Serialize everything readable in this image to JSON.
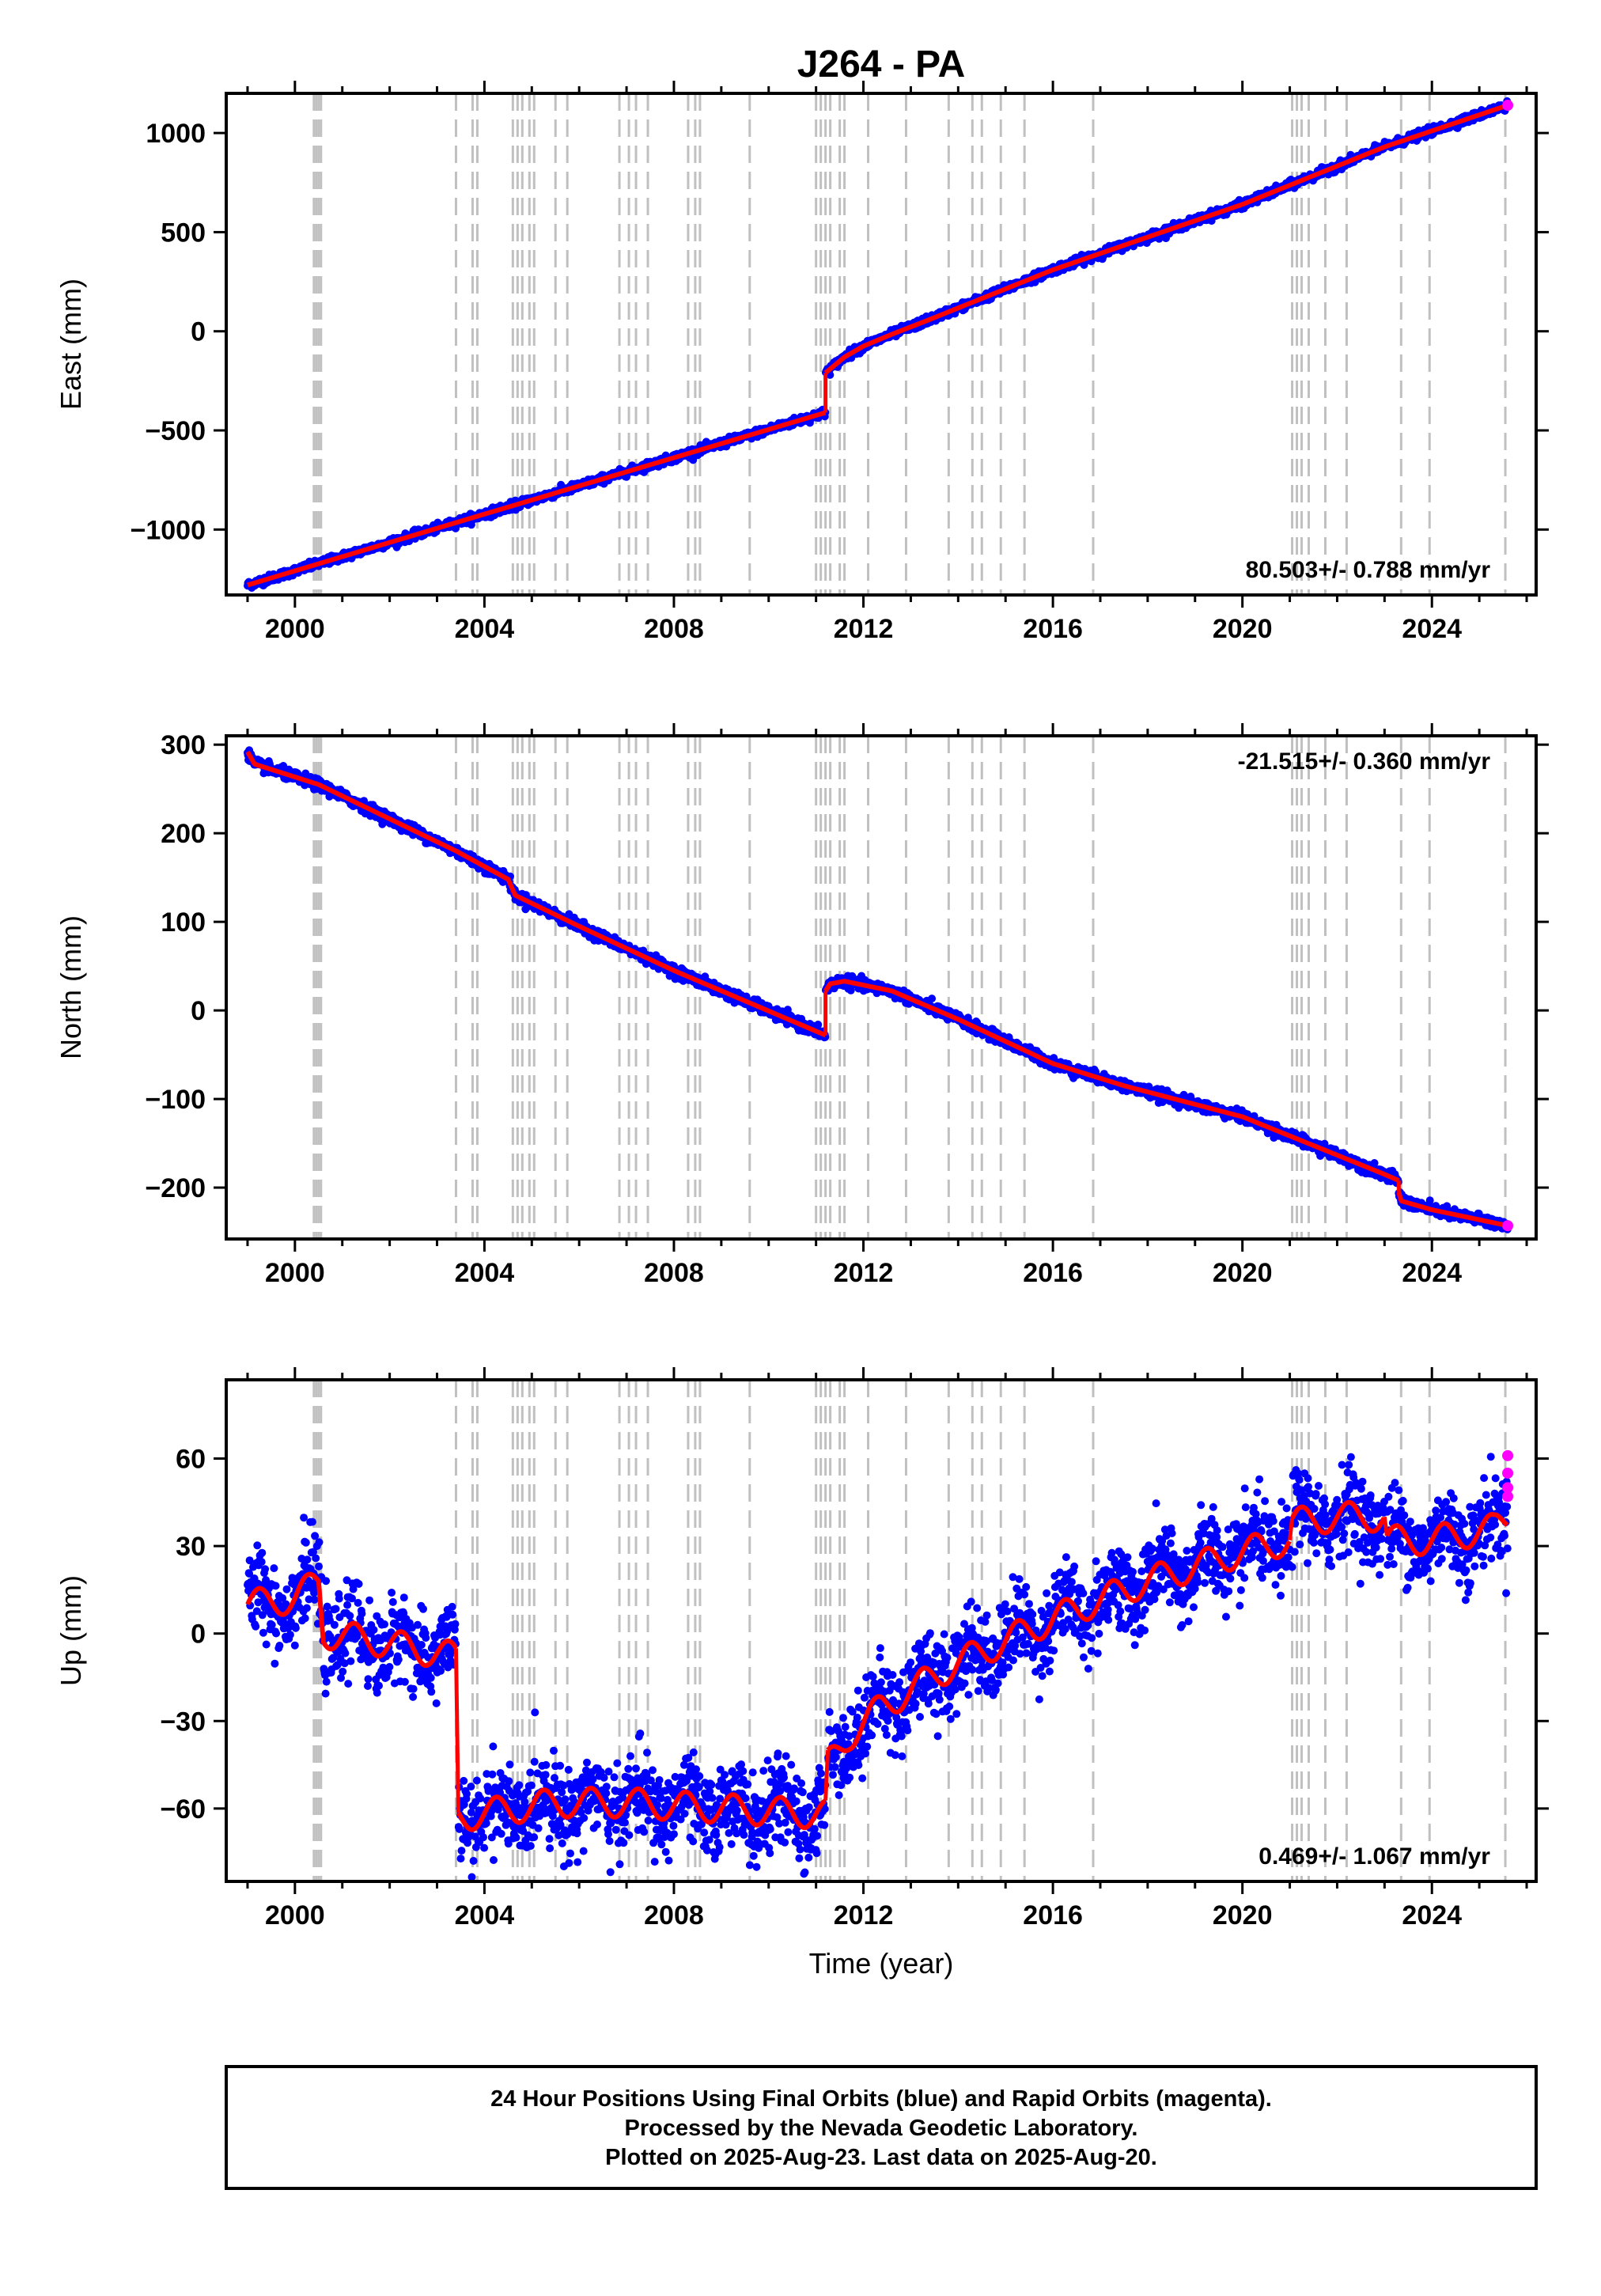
{
  "title": "J264 - PA",
  "colors": {
    "final_points": "#0000ff",
    "rapid_points": "#ff00ff",
    "model_line": "#ff0000",
    "event_lines": "#c0c0c0",
    "frame": "#000000"
  },
  "caption": {
    "line1": "24 Hour Positions Using Final Orbits (blue) and Rapid Orbits (magenta).",
    "line2": "Processed by the Nevada Geodetic Laboratory.",
    "line3": "Plotted on 2025-Aug-23. Last data on 2025-Aug-20."
  },
  "chart_data": [
    {
      "type": "scatter",
      "name": "east",
      "ylabel": "East (mm)",
      "xlabel": "",
      "xlim": [
        1998.55,
        2026.2
      ],
      "ylim": [
        -1330,
        1200
      ],
      "xticks": [
        "2000",
        "2004",
        "2008",
        "2012",
        "2016",
        "2020",
        "2024"
      ],
      "yticks": [
        "−1000",
        "−500",
        "0",
        "500",
        "1000"
      ],
      "rate_text": "80.503+/- 0.788 mm/yr",
      "rate_position": "bottom-right",
      "event_lines_years": [
        2000.4,
        2000.45,
        2000.5,
        2000.55,
        2003.4,
        2003.75,
        2003.85,
        2004.6,
        2004.7,
        2004.8,
        2004.95,
        2005.05,
        2005.5,
        2005.75,
        2006.85,
        2007.05,
        2007.2,
        2007.45,
        2008.3,
        2008.45,
        2008.55,
        2009.6,
        2011.0,
        2011.1,
        2011.2,
        2011.3,
        2011.5,
        2011.6,
        2012.1,
        2012.9,
        2013.8,
        2014.3,
        2014.5,
        2014.9,
        2015.4,
        2016.85,
        2021.05,
        2021.15,
        2021.25,
        2021.4,
        2021.75,
        2022.2,
        2023.35,
        2023.95,
        2025.55
      ],
      "fit_segments": [
        {
          "x": [
            1999.0,
            2003.4,
            2011.2
          ],
          "y": [
            -1280,
            -965,
            -410
          ]
        },
        {
          "x": [
            2011.2,
            2011.6,
            2012.0,
            2012.6,
            2013.3,
            2016.0,
            2020.0,
            2023.0,
            2025.6
          ],
          "y": [
            -210,
            -130,
            -75,
            -15,
            50,
            310,
            640,
            930,
            1140
          ]
        }
      ],
      "noise_sd": 10,
      "rapid_points": [
        {
          "x": 2025.6,
          "y": 1140
        }
      ]
    },
    {
      "type": "scatter",
      "name": "north",
      "ylabel": "North (mm)",
      "xlabel": "",
      "xlim": [
        1998.55,
        2026.2
      ],
      "ylim": [
        -258,
        310
      ],
      "xticks": [
        "2000",
        "2004",
        "2008",
        "2012",
        "2016",
        "2020",
        "2024"
      ],
      "yticks": [
        "−200",
        "−100",
        "0",
        "100",
        "200",
        "300"
      ],
      "rate_text": "-21.515+/- 0.360 mm/yr",
      "rate_position": "top-right",
      "event_lines_years": [
        2000.4,
        2000.45,
        2000.5,
        2000.55,
        2003.4,
        2003.75,
        2003.85,
        2004.6,
        2004.7,
        2004.8,
        2004.95,
        2005.05,
        2005.5,
        2005.75,
        2006.85,
        2007.05,
        2007.2,
        2007.45,
        2008.3,
        2008.45,
        2008.55,
        2009.6,
        2011.0,
        2011.1,
        2011.2,
        2011.3,
        2011.5,
        2011.6,
        2012.1,
        2012.9,
        2013.8,
        2014.3,
        2014.5,
        2014.9,
        2015.4,
        2016.85,
        2021.05,
        2021.15,
        2021.25,
        2021.4,
        2021.75,
        2022.2,
        2023.35,
        2023.95,
        2025.55
      ],
      "fit_segments": [
        {
          "x": [
            1999.0,
            1999.15,
            2000.5,
            2003.4,
            2004.5,
            2004.65,
            2006.0,
            2008.0,
            2011.2
          ],
          "y": [
            292,
            278,
            255,
            180,
            148,
            130,
            95,
            45,
            -28
          ]
        },
        {
          "x": [
            2011.2,
            2011.3,
            2011.6,
            2012.6,
            2014.0,
            2016.0,
            2017.5,
            2020.0,
            2023.0,
            2023.3
          ],
          "y": [
            22,
            30,
            33,
            22,
            -10,
            -60,
            -85,
            -120,
            -185,
            -192
          ]
        },
        {
          "x": [
            2023.3,
            2023.35,
            2024.0,
            2025.6
          ],
          "y": [
            -205,
            -215,
            -225,
            -243
          ]
        }
      ],
      "noise_sd": 3,
      "rapid_points": [
        {
          "x": 2025.6,
          "y": -243
        }
      ]
    },
    {
      "type": "scatter",
      "name": "up",
      "ylabel": "Up (mm)",
      "xlabel": "Time (year)",
      "xlim": [
        1998.55,
        2026.2
      ],
      "ylim": [
        -85,
        87
      ],
      "xticks": [
        "2000",
        "2004",
        "2008",
        "2012",
        "2016",
        "2020",
        "2024"
      ],
      "yticks": [
        "−60",
        "−30",
        "0",
        "30",
        "60"
      ],
      "rate_text": "0.469+/- 1.067 mm/yr",
      "rate_position": "bottom-right",
      "event_lines_years": [
        2000.4,
        2000.45,
        2000.5,
        2000.55,
        2003.4,
        2003.75,
        2003.85,
        2004.6,
        2004.7,
        2004.8,
        2004.95,
        2005.05,
        2005.5,
        2005.75,
        2006.85,
        2007.05,
        2007.2,
        2007.45,
        2008.3,
        2008.45,
        2008.55,
        2009.6,
        2011.0,
        2011.1,
        2011.2,
        2011.3,
        2011.5,
        2011.6,
        2012.1,
        2012.9,
        2013.8,
        2014.3,
        2014.5,
        2014.9,
        2015.4,
        2016.85,
        2021.05,
        2021.15,
        2021.25,
        2021.4,
        2021.75,
        2022.2,
        2023.35,
        2023.95,
        2025.55
      ],
      "fit_segments": [
        {
          "x": [
            1999.0,
            2000.0,
            2000.5,
            2000.6,
            2001.5,
            2003.4
          ],
          "y": [
            10,
            12,
            18,
            0,
            -2,
            -8
          ]
        },
        {
          "x": [
            2003.45,
            2005.5,
            2007.0,
            2009.0,
            2011.2
          ],
          "y": [
            -63,
            -58,
            -58,
            -60,
            -62
          ]
        },
        {
          "x": [
            2011.25,
            2011.7,
            2012.4,
            2014.0,
            2016.0,
            2018.0,
            2020.0,
            2021.0
          ],
          "y": [
            -45,
            -35,
            -25,
            -10,
            5,
            18,
            28,
            32
          ]
        },
        {
          "x": [
            2021.05,
            2022.0,
            2023.0
          ],
          "y": [
            38,
            40,
            40
          ]
        },
        {
          "x": [
            2023.05,
            2024.0,
            2025.3,
            2025.6
          ],
          "y": [
            32,
            32,
            36,
            40
          ]
        }
      ],
      "seasonal_amp": 5,
      "noise_sd": 7,
      "rapid_points": [
        {
          "x": 2025.6,
          "y": 61
        },
        {
          "x": 2025.6,
          "y": 55
        },
        {
          "x": 2025.6,
          "y": 50
        },
        {
          "x": 2025.6,
          "y": 47
        }
      ]
    }
  ]
}
